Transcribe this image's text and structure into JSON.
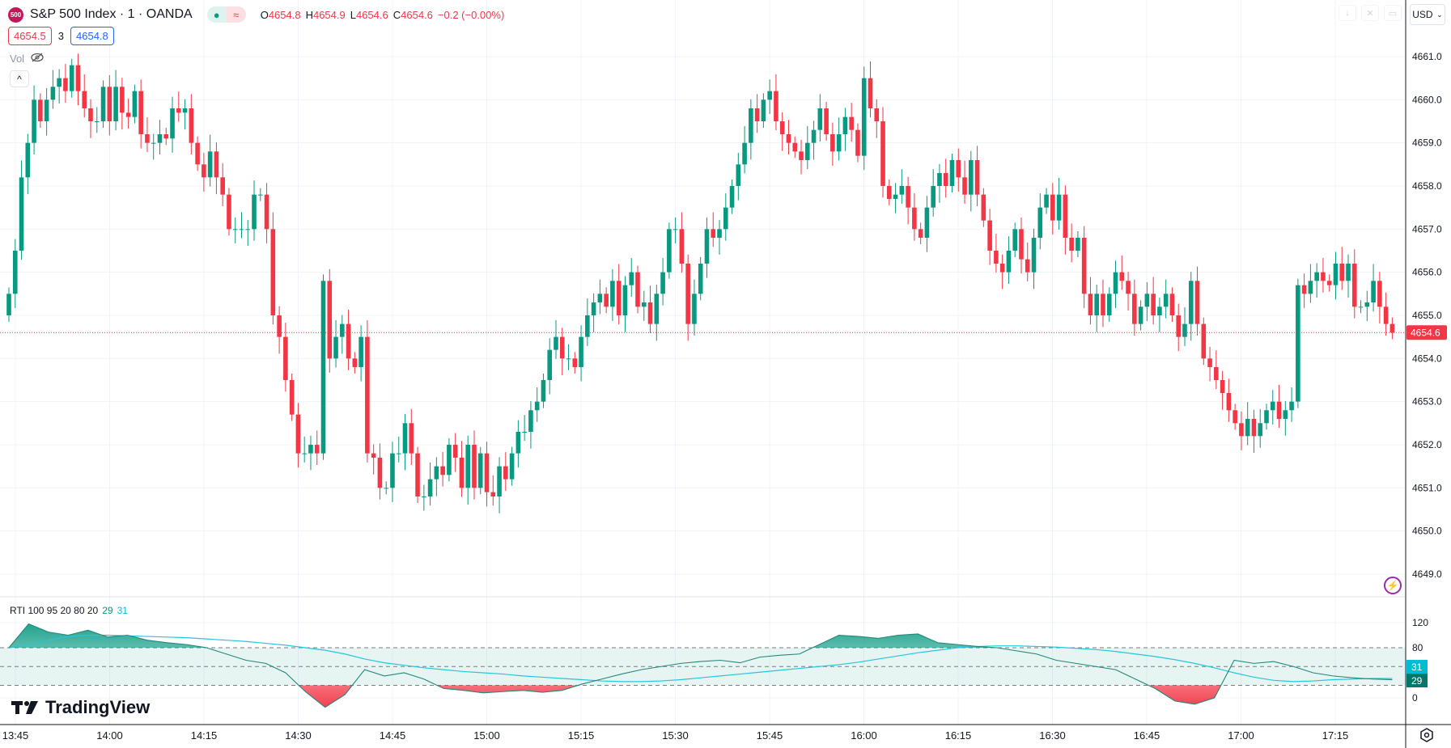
{
  "header": {
    "logo_text": "500",
    "title": "S&P 500 Index · 1 · OANDA",
    "market_open_icon": "●",
    "wave_icon": "≈",
    "ohlc": {
      "o_label": "O",
      "o": "4654.8",
      "h_label": "H",
      "h": "4654.9",
      "l_label": "L",
      "l": "4654.6",
      "c_label": "C",
      "c": "4654.6",
      "change": "−0.2 (−0.00%)"
    }
  },
  "bidask": {
    "bid": "4654.5",
    "spread": "3",
    "ask": "4654.8"
  },
  "vol": {
    "label": "Vol"
  },
  "currency": {
    "label": "USD"
  },
  "indicator": {
    "label": "RTI 100 95 20 80 20",
    "value1": "29",
    "value2": "31",
    "axis_ticks": [
      "120",
      "80",
      "0"
    ],
    "levels": [
      80,
      50,
      20
    ]
  },
  "brand": {
    "name": "TradingView"
  },
  "colors": {
    "up": "#089981",
    "down": "#f23645",
    "rti": "#22877a",
    "signal": "#26c6da"
  },
  "chart_data": {
    "type": "candlestick",
    "symbol": "S&P 500 Index",
    "interval_minutes": 1,
    "start_time": "13:44",
    "first_open": 4655.0,
    "closes": [
      4655.5,
      4656.5,
      4658.2,
      4659,
      4660,
      4659.5,
      4660,
      4660.3,
      4660.5,
      4660.2,
      4660.8,
      4660.2,
      4659.8,
      4659.5,
      4659.5,
      4660.3,
      4659.5,
      4660.3,
      4659.7,
      4659.6,
      4660.2,
      4659.2,
      4659,
      4659,
      4659.2,
      4659.1,
      4659.8,
      4659.7,
      4659.8,
      4659,
      4658.5,
      4658.2,
      4658.8,
      4658.2,
      4657.8,
      4657,
      4657,
      4657,
      4657,
      4657.8,
      4657.8,
      4657,
      4655,
      4654.5,
      4653.5,
      4652.7,
      4651.8,
      4651.8,
      4652,
      4651.8,
      4655.8,
      4654,
      4654.5,
      4654.8,
      4654,
      4653.8,
      4654.5,
      4651.8,
      4651.7,
      4651,
      4651,
      4651.8,
      4651.8,
      4652.5,
      4651.8,
      4650.8,
      4650.8,
      4651.2,
      4651.5,
      4651.3,
      4652,
      4651.7,
      4651,
      4652,
      4651,
      4651.8,
      4650.9,
      4650.8,
      4651.5,
      4651.2,
      4651.8,
      4652.3,
      4652.3,
      4652.8,
      4653,
      4653.5,
      4654.2,
      4654.5,
      4654,
      4654,
      4653.8,
      4654.5,
      4655,
      4655.3,
      4655.5,
      4655.2,
      4655.8,
      4655,
      4655.7,
      4656,
      4655.2,
      4655.3,
      4654.8,
      4655.5,
      4656,
      4657,
      4657,
      4656.2,
      4654.8,
      4655.5,
      4656.2,
      4657,
      4656.8,
      4657,
      4657.5,
      4658,
      4658.5,
      4659,
      4659.8,
      4659.5,
      4660,
      4660.2,
      4659.5,
      4659.2,
      4659,
      4658.8,
      4658.6,
      4659,
      4659.3,
      4659.8,
      4659.2,
      4658.8,
      4659.2,
      4659.6,
      4659.3,
      4658.7,
      4660.5,
      4659.8,
      4659.5,
      4658,
      4657.7,
      4657.8,
      4658,
      4657.5,
      4657,
      4656.8,
      4657.5,
      4658,
      4658.3,
      4658,
      4658.6,
      4658.2,
      4657.8,
      4658.6,
      4657.8,
      4657.2,
      4656.5,
      4656.2,
      4656,
      4656.5,
      4657,
      4656.3,
      4656,
      4656.8,
      4657.5,
      4657.8,
      4657.2,
      4657.8,
      4656.8,
      4656.5,
      4656.8,
      4655.5,
      4655,
      4655.5,
      4655,
      4655.5,
      4656,
      4655.8,
      4655.5,
      4654.8,
      4655.2,
      4655.5,
      4655,
      4655.2,
      4655.5,
      4655,
      4654.5,
      4654.8,
      4655.8,
      4654.8,
      4654,
      4653.8,
      4653.5,
      4653.2,
      4652.8,
      4652.5,
      4652.2,
      4652.6,
      4652.2,
      4652.5,
      4652.8,
      4653,
      4652.6,
      4652.8,
      4653,
      4655.7,
      4655.5,
      4655.8,
      4656,
      4655.8,
      4655.7,
      4656.2,
      4655.8,
      4656.2,
      4655.2,
      4655.2,
      4655.3,
      4655.8,
      4655.2,
      4654.8,
      4654.6
    ],
    "current_price": "4654.6",
    "y_ticks": [
      "4661.0",
      "4660.0",
      "4659.0",
      "4658.0",
      "4657.0",
      "4656.0",
      "4655.0",
      "4654.0",
      "4653.0",
      "4652.0",
      "4651.0",
      "4650.0",
      "4649.0"
    ],
    "ylim": [
      4649,
      4661
    ],
    "x_ticks": [
      "13:45",
      "14:00",
      "14:15",
      "14:30",
      "14:45",
      "15:00",
      "15:15",
      "15:30",
      "15:45",
      "16:00",
      "16:15",
      "16:30",
      "16:45",
      "17:00",
      "17:15"
    ],
    "rti": [
      80,
      118,
      105,
      100,
      108,
      97,
      100,
      92,
      88,
      85,
      80,
      70,
      60,
      55,
      40,
      10,
      -15,
      5,
      45,
      35,
      40,
      30,
      15,
      12,
      8,
      10,
      12,
      9,
      12,
      22,
      30,
      38,
      45,
      50,
      55,
      58,
      60,
      56,
      65,
      68,
      70,
      85,
      100,
      98,
      95,
      100,
      102,
      88,
      85,
      82,
      80,
      75,
      70,
      60,
      55,
      50,
      45,
      30,
      15,
      -5,
      -10,
      0,
      60,
      55,
      58,
      50,
      40,
      35,
      32,
      30,
      29
    ],
    "rti_signal": [
      80,
      85,
      92,
      98,
      100,
      100,
      99,
      98,
      97,
      96,
      94,
      92,
      90,
      87,
      84,
      80,
      76,
      70,
      62,
      56,
      52,
      48,
      45,
      42,
      40,
      38,
      35,
      33,
      31,
      29,
      27,
      26,
      26,
      27,
      29,
      32,
      35,
      38,
      41,
      44,
      47,
      50,
      53,
      57,
      62,
      67,
      72,
      76,
      80,
      82,
      83,
      83,
      82,
      81,
      79,
      77,
      74,
      70,
      66,
      61,
      55,
      48,
      40,
      33,
      28,
      26,
      27,
      29,
      30,
      31,
      31
    ]
  }
}
